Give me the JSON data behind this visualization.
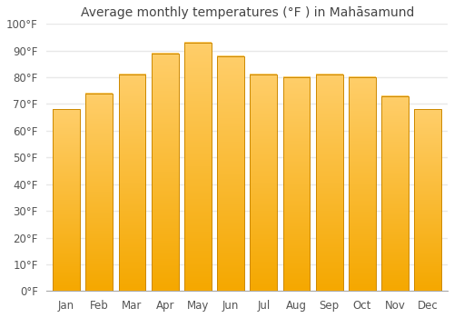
{
  "title": "Average monthly temperatures (°F ) in Mahāsamund",
  "months": [
    "Jan",
    "Feb",
    "Mar",
    "Apr",
    "May",
    "Jun",
    "Jul",
    "Aug",
    "Sep",
    "Oct",
    "Nov",
    "Dec"
  ],
  "values": [
    68,
    74,
    81,
    89,
    93,
    88,
    81,
    80,
    81,
    80,
    73,
    68
  ],
  "bar_color_top": "#FDB528",
  "bar_color_bottom": "#FFCE6A",
  "bar_edge_color": "#CC8800",
  "background_color": "#ffffff",
  "plot_bg_color": "#ffffff",
  "grid_color": "#e8e8e8",
  "ylim": [
    0,
    100
  ],
  "ytick_step": 10,
  "title_fontsize": 10,
  "tick_fontsize": 8.5,
  "bar_width": 0.82
}
